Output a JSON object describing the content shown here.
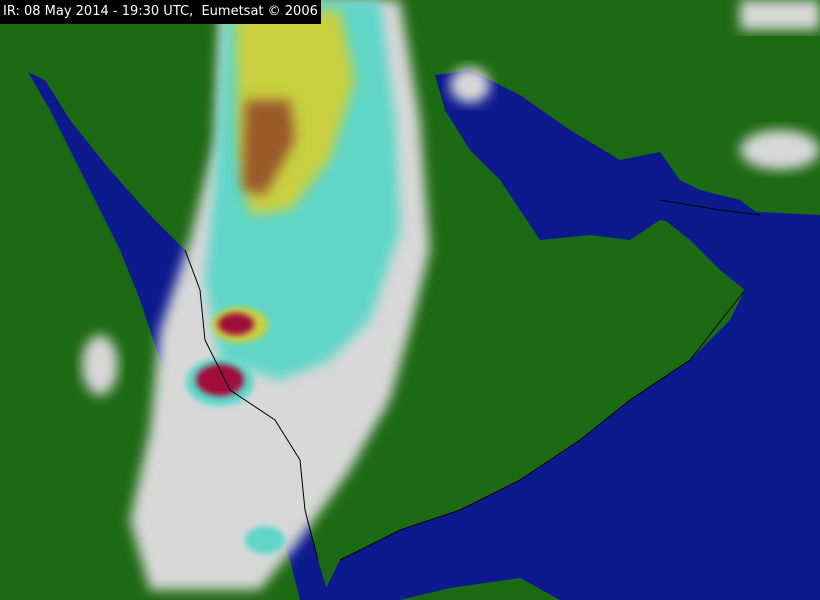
{
  "caption": "IR: 08 May 2014 - 19:30 UTC,  Eumetsat © 2006",
  "colors": {
    "land": "#1d6a14",
    "sea": "#0c1a8e",
    "cloud_low": "#d8d8d8",
    "cloud_mid": "#5fd6c8",
    "cloud_high": "#c8d040",
    "cloud_top": "#9a5a2a",
    "cloud_extreme": "#a0103a"
  }
}
